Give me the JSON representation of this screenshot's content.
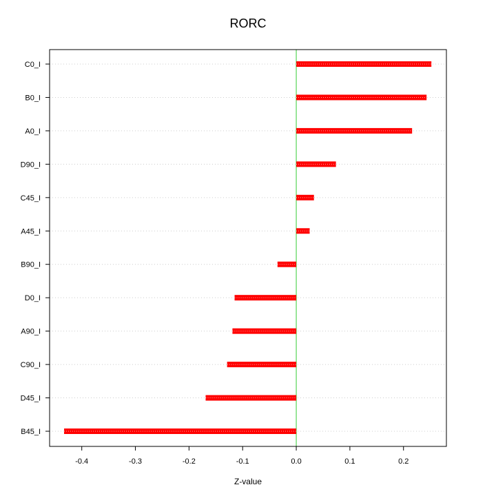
{
  "chart_data": {
    "type": "bar",
    "orientation": "horizontal",
    "title": "RORC",
    "xlabel": "Z-value",
    "ylabel": "",
    "categories": [
      "C0_I",
      "B0_I",
      "A0_I",
      "D90_I",
      "C45_I",
      "A45_I",
      "B90_I",
      "D0_I",
      "A90_I",
      "C90_I",
      "D45_I",
      "B45_I"
    ],
    "values": [
      0.252,
      0.243,
      0.216,
      0.074,
      0.033,
      0.025,
      -0.035,
      -0.115,
      -0.119,
      -0.129,
      -0.169,
      -0.433
    ],
    "xlim": [
      -0.46,
      0.28
    ],
    "xticks": [
      -0.4,
      -0.3,
      -0.2,
      -0.1,
      0.0,
      0.1,
      0.2
    ],
    "xtick_labels": [
      "-0.4",
      "-0.3",
      "-0.2",
      "-0.1",
      "0.0",
      "0.1",
      "0.2"
    ],
    "grid": "horizontal dotted",
    "reference_line": 0.0,
    "colors": {
      "bar": "#ff0000",
      "bar_highlight": "#ffaaaa",
      "reference_line": "#33cc33",
      "grid": "#cccccc",
      "axis": "#000000"
    }
  }
}
